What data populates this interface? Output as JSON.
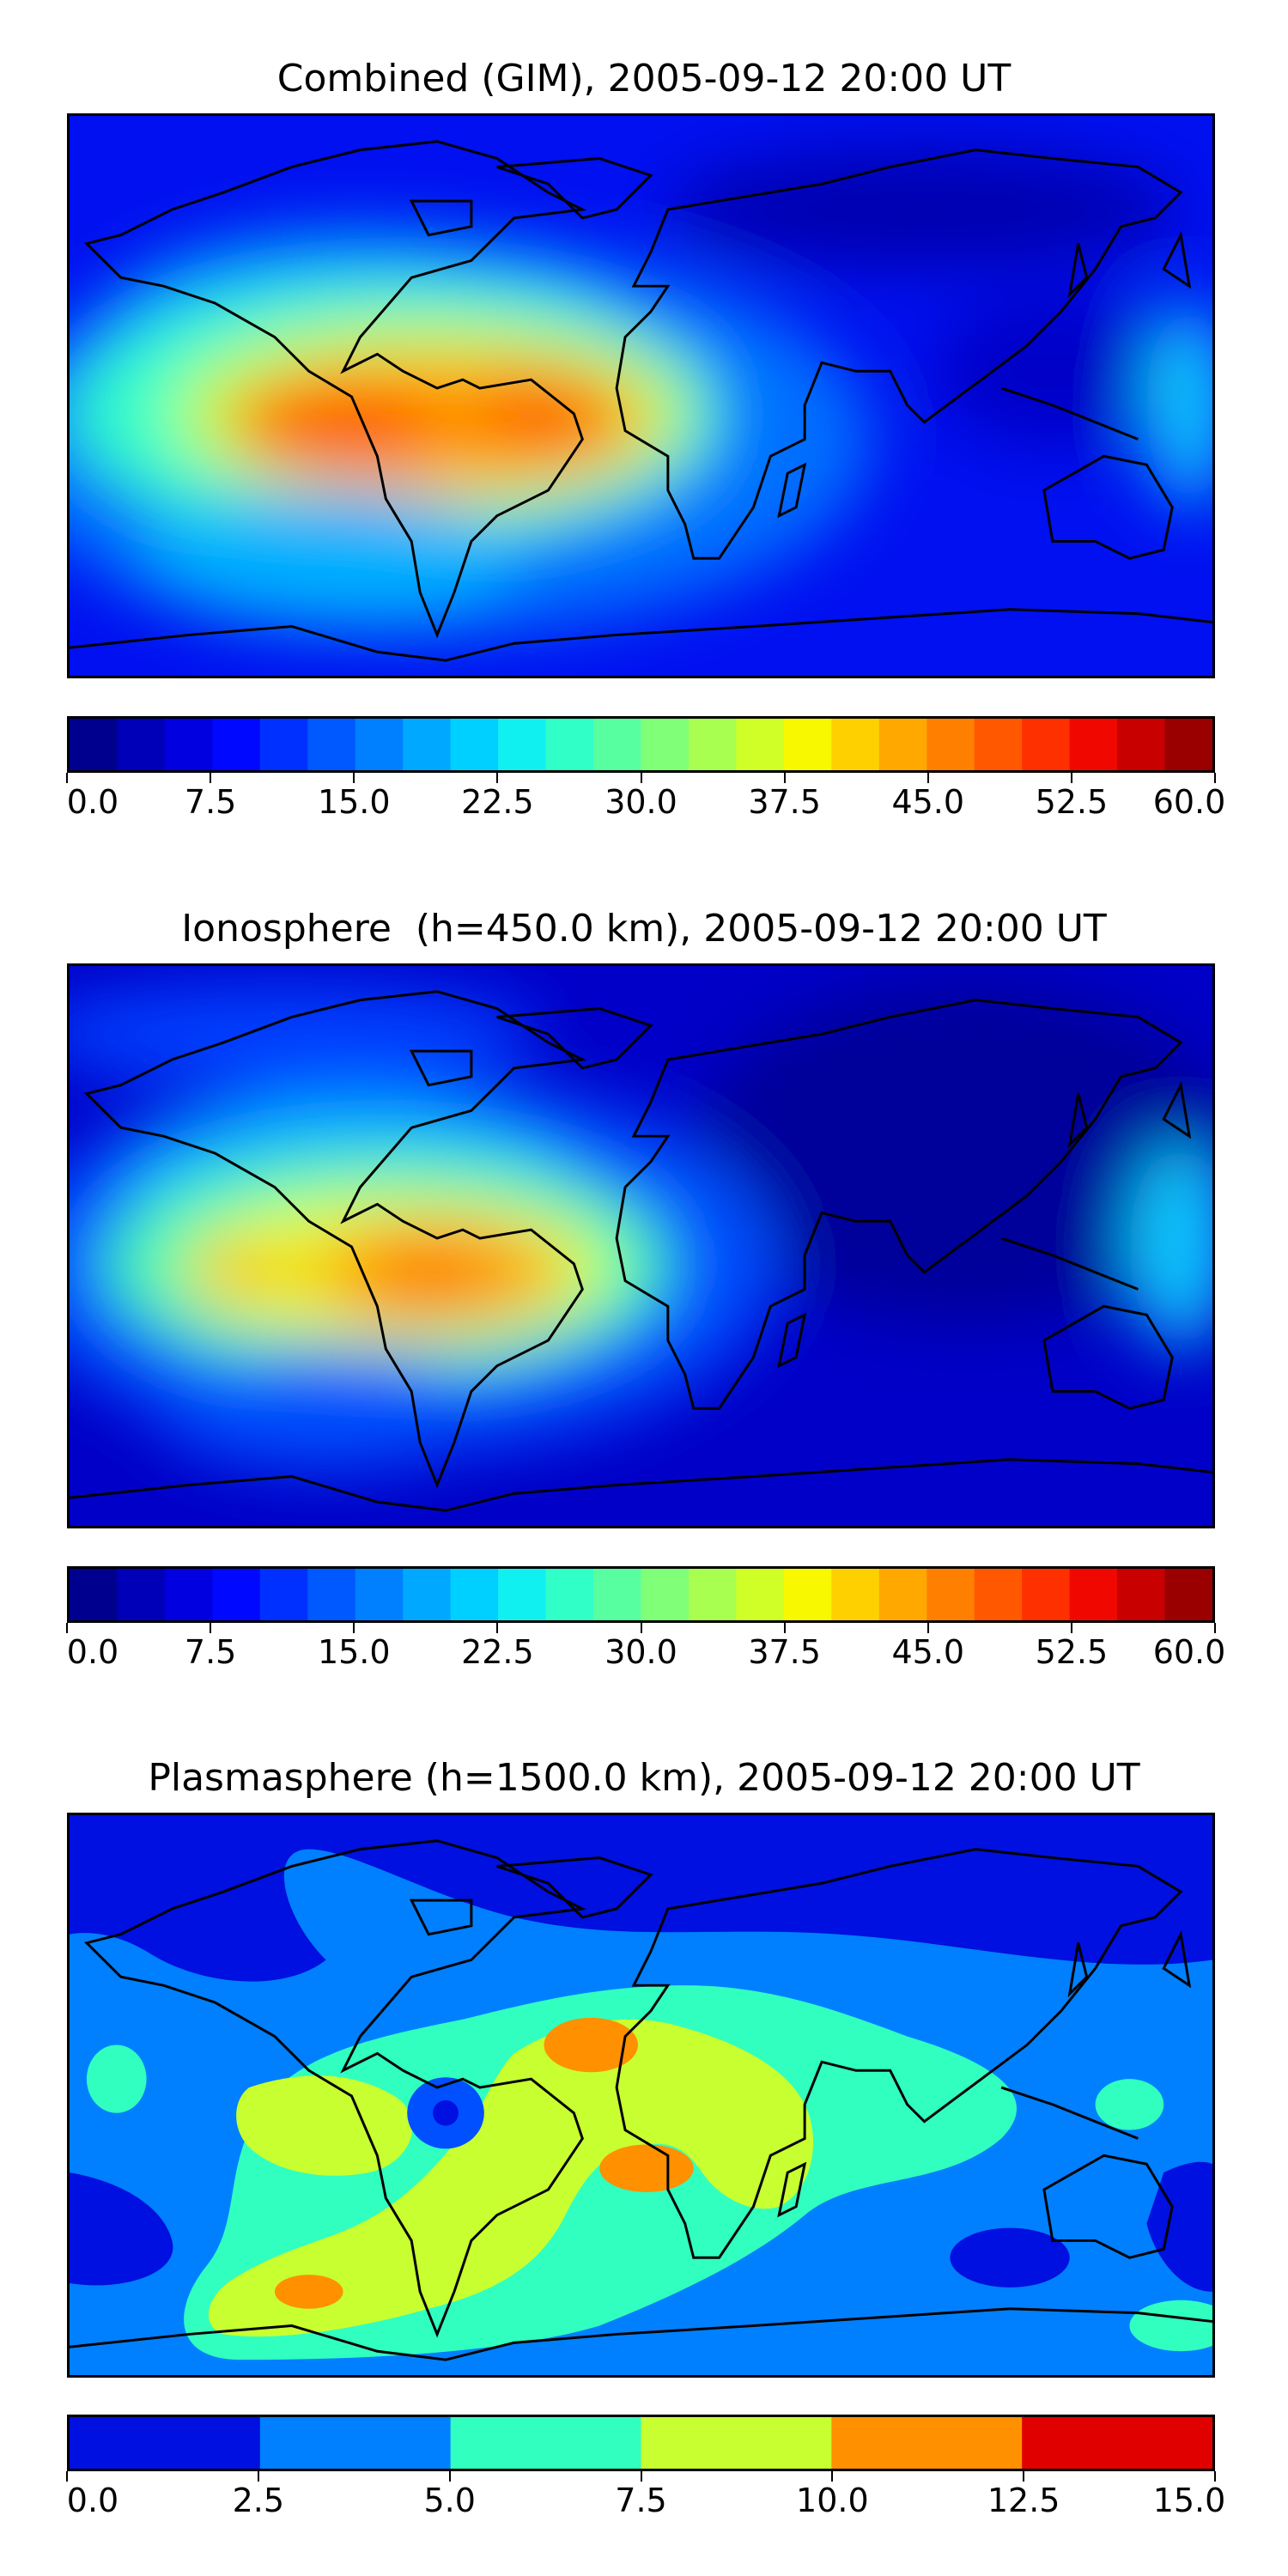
{
  "panels": [
    {
      "title": "Combined (GIM), 2005-09-12 20:00 UT",
      "colorbar": {
        "ticks": [
          "0.0",
          "7.5",
          "15.0",
          "22.5",
          "30.0",
          "37.5",
          "45.0",
          "52.5",
          "60.0"
        ],
        "range": [
          0,
          60
        ],
        "levels": 24,
        "colors": [
          "#00008f",
          "#0000b8",
          "#0000e0",
          "#0008ff",
          "#0030ff",
          "#0058ff",
          "#0080ff",
          "#00a8ff",
          "#00d0ff",
          "#10f0f0",
          "#30ffc8",
          "#58ffa0",
          "#80ff78",
          "#a8ff50",
          "#d0ff28",
          "#f8f800",
          "#ffd000",
          "#ffa800",
          "#ff8000",
          "#ff5800",
          "#ff3000",
          "#f00800",
          "#c80000",
          "#9a0000"
        ]
      }
    },
    {
      "title": "Ionosphere  (h=450.0 km), 2005-09-12 20:00 UT",
      "colorbar": {
        "ticks": [
          "0.0",
          "7.5",
          "15.0",
          "22.5",
          "30.0",
          "37.5",
          "45.0",
          "52.5",
          "60.0"
        ],
        "range": [
          0,
          60
        ],
        "levels": 24,
        "colors": [
          "#00008f",
          "#0000b8",
          "#0000e0",
          "#0008ff",
          "#0030ff",
          "#0058ff",
          "#0080ff",
          "#00a8ff",
          "#00d0ff",
          "#10f0f0",
          "#30ffc8",
          "#58ffa0",
          "#80ff78",
          "#a8ff50",
          "#d0ff28",
          "#f8f800",
          "#ffd000",
          "#ffa800",
          "#ff8000",
          "#ff5800",
          "#ff3000",
          "#f00800",
          "#c80000",
          "#9a0000"
        ]
      }
    },
    {
      "title": "Plasmasphere (h=1500.0 km), 2005-09-12 20:00 UT",
      "colorbar": {
        "ticks": [
          "0.0",
          "2.5",
          "5.0",
          "7.5",
          "10.0",
          "12.5",
          "15.0"
        ],
        "range": [
          0,
          15
        ],
        "levels": 6,
        "colors": [
          "#0010e0",
          "#0080ff",
          "#30ffc0",
          "#c8ff30",
          "#ff9000",
          "#e00000"
        ]
      }
    }
  ]
}
